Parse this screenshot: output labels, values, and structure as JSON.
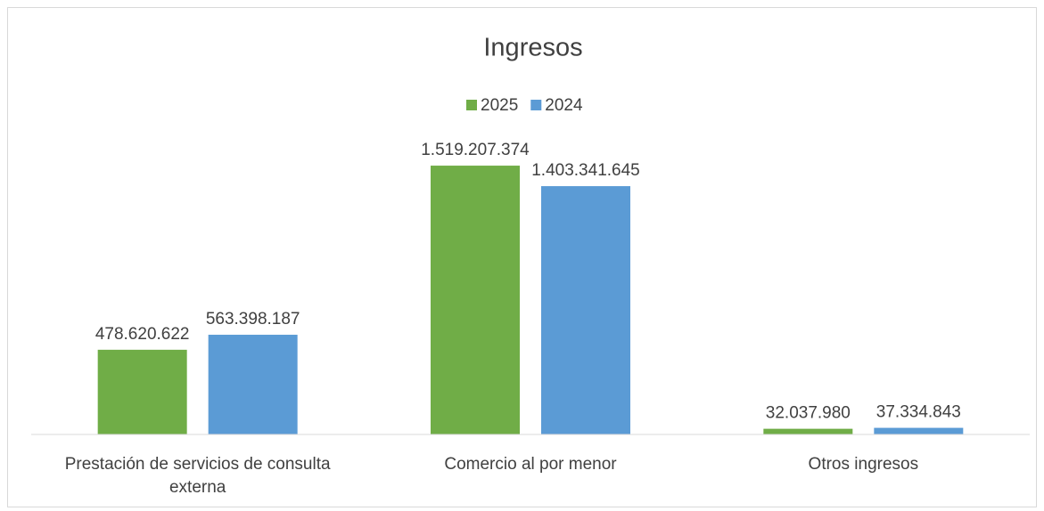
{
  "chart_data": {
    "type": "bar",
    "title": "Ingresos",
    "categories": [
      "Prestación de servicios de consulta externa",
      "Comercio al por menor",
      "Otros ingresos"
    ],
    "series": [
      {
        "name": "2025",
        "color": "#70ad47",
        "values": [
          478620622,
          1519207374,
          32037980
        ],
        "value_labels": [
          "478.620.622",
          "1.519.207.374",
          "32.037.980"
        ]
      },
      {
        "name": "2024",
        "color": "#5b9bd5",
        "values": [
          563398187,
          1403341645,
          37334843
        ],
        "value_labels": [
          "563.398.187",
          "1.403.341.645",
          "37.334.843"
        ]
      }
    ],
    "ylim": [
      0,
      1600000000
    ],
    "legend": "top"
  }
}
